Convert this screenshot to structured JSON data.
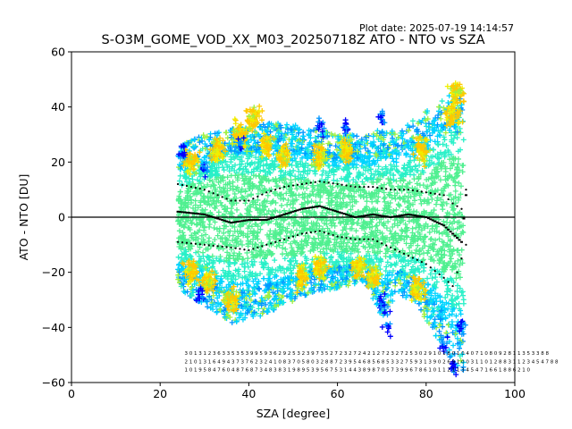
{
  "plot_date": "Plot date: 2025-07-19 14:14:57",
  "chart_data": {
    "type": "scatter",
    "title": "S-O3M_GOME_VOD_XX_M03_20250718Z ATO - NTO vs SZA",
    "xlabel": "SZA [degree]",
    "ylabel": "ATO - NTO [DU]",
    "xlim": [
      0,
      100
    ],
    "ylim": [
      -60,
      60
    ],
    "xticks": [
      0,
      20,
      40,
      60,
      80,
      100
    ],
    "yticks": [
      -60,
      -40,
      -20,
      0,
      20,
      40,
      60
    ],
    "xtick_labels": [
      "0",
      "20",
      "40",
      "60",
      "80",
      "100"
    ],
    "ytick_labels": [
      "−60",
      "−40",
      "−20",
      "0",
      "20",
      "40",
      "60"
    ],
    "grid": false,
    "reference_line_y": 0,
    "marker": "+",
    "density_colors": [
      "#0000ff",
      "#0096ff",
      "#00d4ff",
      "#28f0c8",
      "#50f090",
      "#a0f040",
      "#f0f000",
      "#ffc800"
    ],
    "envelope": [
      {
        "x": 24,
        "upper": 24,
        "lower": -24
      },
      {
        "x": 30,
        "upper": 28,
        "lower": -30
      },
      {
        "x": 36,
        "upper": 30,
        "lower": -36
      },
      {
        "x": 42,
        "upper": 32,
        "lower": -34
      },
      {
        "x": 48,
        "upper": 32,
        "lower": -30
      },
      {
        "x": 54,
        "upper": 30,
        "lower": -26
      },
      {
        "x": 60,
        "upper": 28,
        "lower": -24
      },
      {
        "x": 66,
        "upper": 28,
        "lower": -22
      },
      {
        "x": 70,
        "upper": 30,
        "lower": -34
      },
      {
        "x": 74,
        "upper": 30,
        "lower": -26
      },
      {
        "x": 78,
        "upper": 34,
        "lower": -30
      },
      {
        "x": 82,
        "upper": 38,
        "lower": -40
      },
      {
        "x": 86,
        "upper": 42,
        "lower": -50
      },
      {
        "x": 88.5,
        "upper": 40,
        "lower": -52
      }
    ],
    "warm_clusters": [
      {
        "x": 27,
        "y": 20
      },
      {
        "x": 33,
        "y": 24
      },
      {
        "x": 38,
        "y": 30
      },
      {
        "x": 41,
        "y": 36
      },
      {
        "x": 44,
        "y": 26
      },
      {
        "x": 48,
        "y": 22
      },
      {
        "x": 56,
        "y": 22
      },
      {
        "x": 62,
        "y": 24
      },
      {
        "x": 79,
        "y": 24
      },
      {
        "x": 86,
        "y": 38
      },
      {
        "x": 87,
        "y": 45
      },
      {
        "x": 27,
        "y": -20
      },
      {
        "x": 31,
        "y": -24
      },
      {
        "x": 36,
        "y": -30
      },
      {
        "x": 52,
        "y": -22
      },
      {
        "x": 56,
        "y": -18
      },
      {
        "x": 65,
        "y": -18
      },
      {
        "x": 68,
        "y": -22
      },
      {
        "x": 78,
        "y": -26
      }
    ],
    "blue_clusters": [
      {
        "x": 25,
        "y": 24
      },
      {
        "x": 30,
        "y": 18
      },
      {
        "x": 38,
        "y": 26
      },
      {
        "x": 56,
        "y": 33
      },
      {
        "x": 62,
        "y": 33
      },
      {
        "x": 70,
        "y": 36
      },
      {
        "x": 70,
        "y": -30
      },
      {
        "x": 71,
        "y": -38
      },
      {
        "x": 84,
        "y": -46
      },
      {
        "x": 86,
        "y": -55
      },
      {
        "x": 88,
        "y": -40
      },
      {
        "x": 29,
        "y": -28
      }
    ],
    "mean_series": [
      {
        "x": 24,
        "y": 2
      },
      {
        "x": 30,
        "y": 1
      },
      {
        "x": 36,
        "y": -2
      },
      {
        "x": 40,
        "y": -1
      },
      {
        "x": 44,
        "y": -1
      },
      {
        "x": 48,
        "y": 1
      },
      {
        "x": 52,
        "y": 3
      },
      {
        "x": 56,
        "y": 4
      },
      {
        "x": 60,
        "y": 2
      },
      {
        "x": 64,
        "y": 0
      },
      {
        "x": 68,
        "y": 1
      },
      {
        "x": 72,
        "y": 0
      },
      {
        "x": 76,
        "y": 1
      },
      {
        "x": 80,
        "y": 0
      },
      {
        "x": 84,
        "y": -3
      },
      {
        "x": 86,
        "y": -6
      },
      {
        "x": 88,
        "y": -9
      },
      {
        "x": 89,
        "y": 8
      }
    ],
    "upper_std_series": [
      {
        "x": 24,
        "y": 12
      },
      {
        "x": 30,
        "y": 10
      },
      {
        "x": 36,
        "y": 6
      },
      {
        "x": 40,
        "y": 6
      },
      {
        "x": 44,
        "y": 9
      },
      {
        "x": 48,
        "y": 11
      },
      {
        "x": 52,
        "y": 12
      },
      {
        "x": 56,
        "y": 13
      },
      {
        "x": 60,
        "y": 12
      },
      {
        "x": 64,
        "y": 11
      },
      {
        "x": 68,
        "y": 11
      },
      {
        "x": 72,
        "y": 10
      },
      {
        "x": 76,
        "y": 10
      },
      {
        "x": 80,
        "y": 9
      },
      {
        "x": 84,
        "y": 8
      },
      {
        "x": 86,
        "y": 5
      },
      {
        "x": 88,
        "y": 3
      },
      {
        "x": 89,
        "y": 10
      }
    ],
    "lower_std_series": [
      {
        "x": 24,
        "y": -9
      },
      {
        "x": 30,
        "y": -10
      },
      {
        "x": 36,
        "y": -11
      },
      {
        "x": 40,
        "y": -12
      },
      {
        "x": 44,
        "y": -10
      },
      {
        "x": 48,
        "y": -8
      },
      {
        "x": 52,
        "y": -6
      },
      {
        "x": 56,
        "y": -5
      },
      {
        "x": 60,
        "y": -7
      },
      {
        "x": 64,
        "y": -8
      },
      {
        "x": 68,
        "y": -8
      },
      {
        "x": 72,
        "y": -11
      },
      {
        "x": 76,
        "y": -14
      },
      {
        "x": 80,
        "y": -17
      },
      {
        "x": 84,
        "y": -22
      },
      {
        "x": 86,
        "y": -25
      },
      {
        "x": 88,
        "y": -15
      },
      {
        "x": 89,
        "y": -10
      }
    ],
    "count_annotations": {
      "x_start": 25.5,
      "x_step": 1.05,
      "rows": [
        {
          "y": -50,
          "text": "3 0 1 3 1 2 3 6 3 3 5 3 5 3 9 9 5 9 3 6 2 9 2 5 3 2 3 9 7 3 5 2 7 2 3 2 7 2 4 2 1 2 7 2 3 2 7 2 5 3 0 2 9 1 0 1 8 0 1 0 4 0 7 1 0 8 0 9 2 8 1 1 3 5 3 3 8 8"
        },
        {
          "y": -53,
          "text": "2 1 0 1 3 1 6 4 9 4 3 7 3 7 6 2 3 2 4 1 0 8 3 7 0 5 8 0 3 2 8 8 7 2 3 9 5 4 6 8 5 6 8 5 3 3 2 7 5 9 3 1 3 9 0 2 6 9 1 0 0 3 1 1 0 1 2 8 8 3 1 1 2 3 4 5 4 7 8 8"
        },
        {
          "y": -56,
          "text": "1 0 1 9 5 8 4 7 6 0 4 8 7 6 8 7 3 4 8 3 8 3 1 9 8 9 5 3 9 5 6 7 5 3 1 4 4 3 8 9 8 7 0 5 7 3 9 9 6 7 8 6 1 0 1 1 2 1 1 3 4 5 4 7 1 6 6 1 8 8 6 2 1 0"
        }
      ]
    }
  }
}
